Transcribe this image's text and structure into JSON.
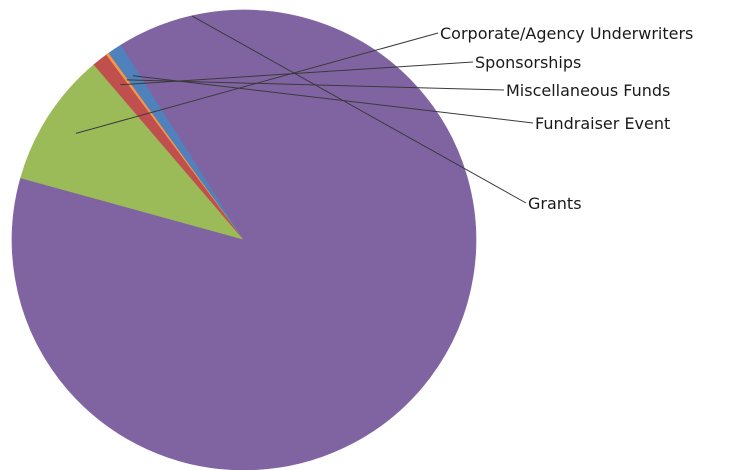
{
  "chart_data": {
    "type": "pie",
    "title": "",
    "slices": [
      {
        "label": "Corporate/Agency Underwriters",
        "value": 9.5,
        "color": "#9bbb59"
      },
      {
        "label": "Sponsorships",
        "value": 1.1,
        "color": "#c0504d"
      },
      {
        "label": "Miscellaneous Funds",
        "value": 0.2,
        "color": "#f79646"
      },
      {
        "label": "Fundraiser Event",
        "value": 1.0,
        "color": "#4f81bd"
      },
      {
        "label": "Grants",
        "value": 88.2,
        "color": "#8064a2"
      }
    ],
    "legend": "none",
    "labels_placement": "outside-right with leader lines"
  }
}
